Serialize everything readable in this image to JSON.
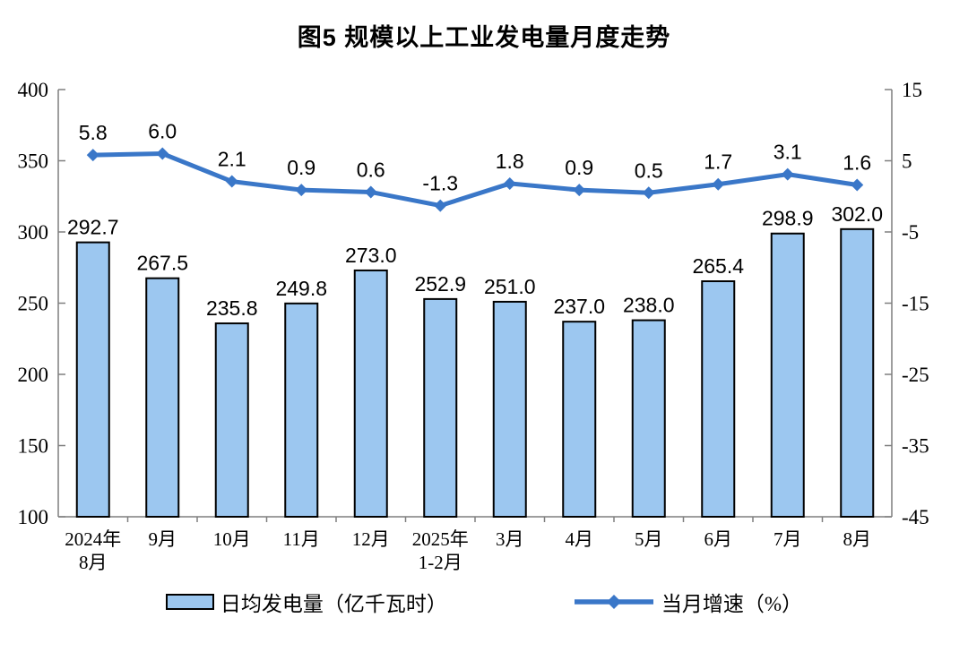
{
  "title": "图5  规模以上工业发电量月度走势",
  "legend": {
    "bar_label": "日均发电量（亿千瓦时）",
    "line_label": "当月增速（%）"
  },
  "colors": {
    "bar_fill": "#9CC7F0",
    "bar_border": "#000000",
    "line": "#3A77C8",
    "axis": "#7F7F7F",
    "label_text": "#000000"
  },
  "chart_data": {
    "type": "combo",
    "categories": [
      "2024年\n8月",
      "9月",
      "10月",
      "11月",
      "12月",
      "2025年\n1-2月",
      "3月",
      "4月",
      "5月",
      "6月",
      "7月",
      "8月"
    ],
    "series": [
      {
        "name": "日均发电量（亿千瓦时）",
        "type": "bar",
        "axis": "left",
        "values": [
          292.7,
          267.5,
          235.8,
          249.8,
          273.0,
          252.9,
          251.0,
          237.0,
          238.0,
          265.4,
          298.9,
          302.0
        ]
      },
      {
        "name": "当月增速（%）",
        "type": "line",
        "axis": "right",
        "values": [
          5.8,
          6.0,
          2.1,
          0.9,
          0.6,
          -1.3,
          1.8,
          0.9,
          0.5,
          1.7,
          3.1,
          1.6
        ]
      }
    ],
    "left_axis": {
      "min": 100,
      "max": 400,
      "step": 50,
      "ticks": [
        "400",
        "350",
        "300",
        "250",
        "200",
        "150",
        "100"
      ]
    },
    "right_axis": {
      "min": -45,
      "max": 15,
      "step": 10,
      "ticks": [
        "15",
        "5",
        "-5",
        "-15",
        "-25",
        "-35",
        "-45"
      ]
    },
    "grid": false,
    "legend_position": "bottom"
  }
}
